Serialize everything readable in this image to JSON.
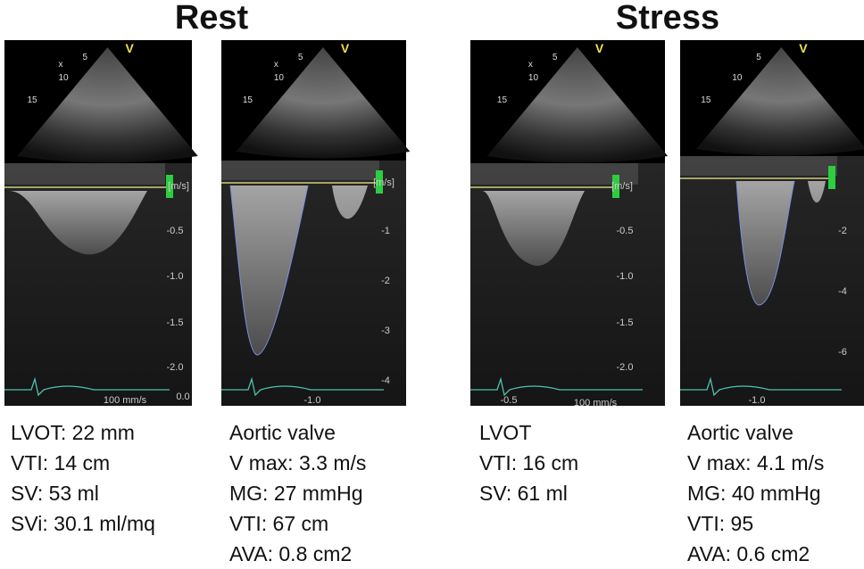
{
  "titles": [
    "Rest",
    "Stress"
  ],
  "panels": [
    {
      "sector_labels": [
        "x",
        "5",
        "10",
        "15",
        "V"
      ],
      "scale_labels": [
        "[m/s]",
        "-0.5",
        "-1.0",
        "-1.5",
        "-2.0",
        "0.0",
        "100 mm/s"
      ],
      "caption": [
        "LVOT: 22 mm",
        "VTI: 14 cm",
        "SV: 53 ml",
        "SVi: 30.1 ml/mq"
      ]
    },
    {
      "sector_labels": [
        "x",
        "5",
        "10",
        "15",
        "V"
      ],
      "scale_labels": [
        "[m/s]",
        "-1",
        "-2",
        "-3",
        "-4",
        "-1.0"
      ],
      "caption": [
        "Aortic valve",
        "V max: 3.3 m/s",
        "MG: 27 mmHg",
        "VTI: 67 cm",
        "AVA: 0.8 cm2"
      ]
    },
    {
      "sector_labels": [
        "x",
        "5",
        "10",
        "15",
        "V"
      ],
      "scale_labels": [
        "[m/s]",
        "-0.5",
        "-1.0",
        "-1.5",
        "-2.0",
        "-0.5",
        "100 mm/s"
      ],
      "caption": [
        "LVOT",
        "VTI: 16 cm",
        "SV: 61 ml"
      ]
    },
    {
      "sector_labels": [
        "5",
        "10",
        "15",
        "V"
      ],
      "scale_labels": [
        "-2",
        "-4",
        "-6",
        "-1.0"
      ],
      "caption": [
        "Aortic valve",
        "V max: 4.1 m/s",
        "MG: 40 mmHg",
        "VTI: 95",
        "AVA: 0.6 cm2"
      ]
    }
  ]
}
